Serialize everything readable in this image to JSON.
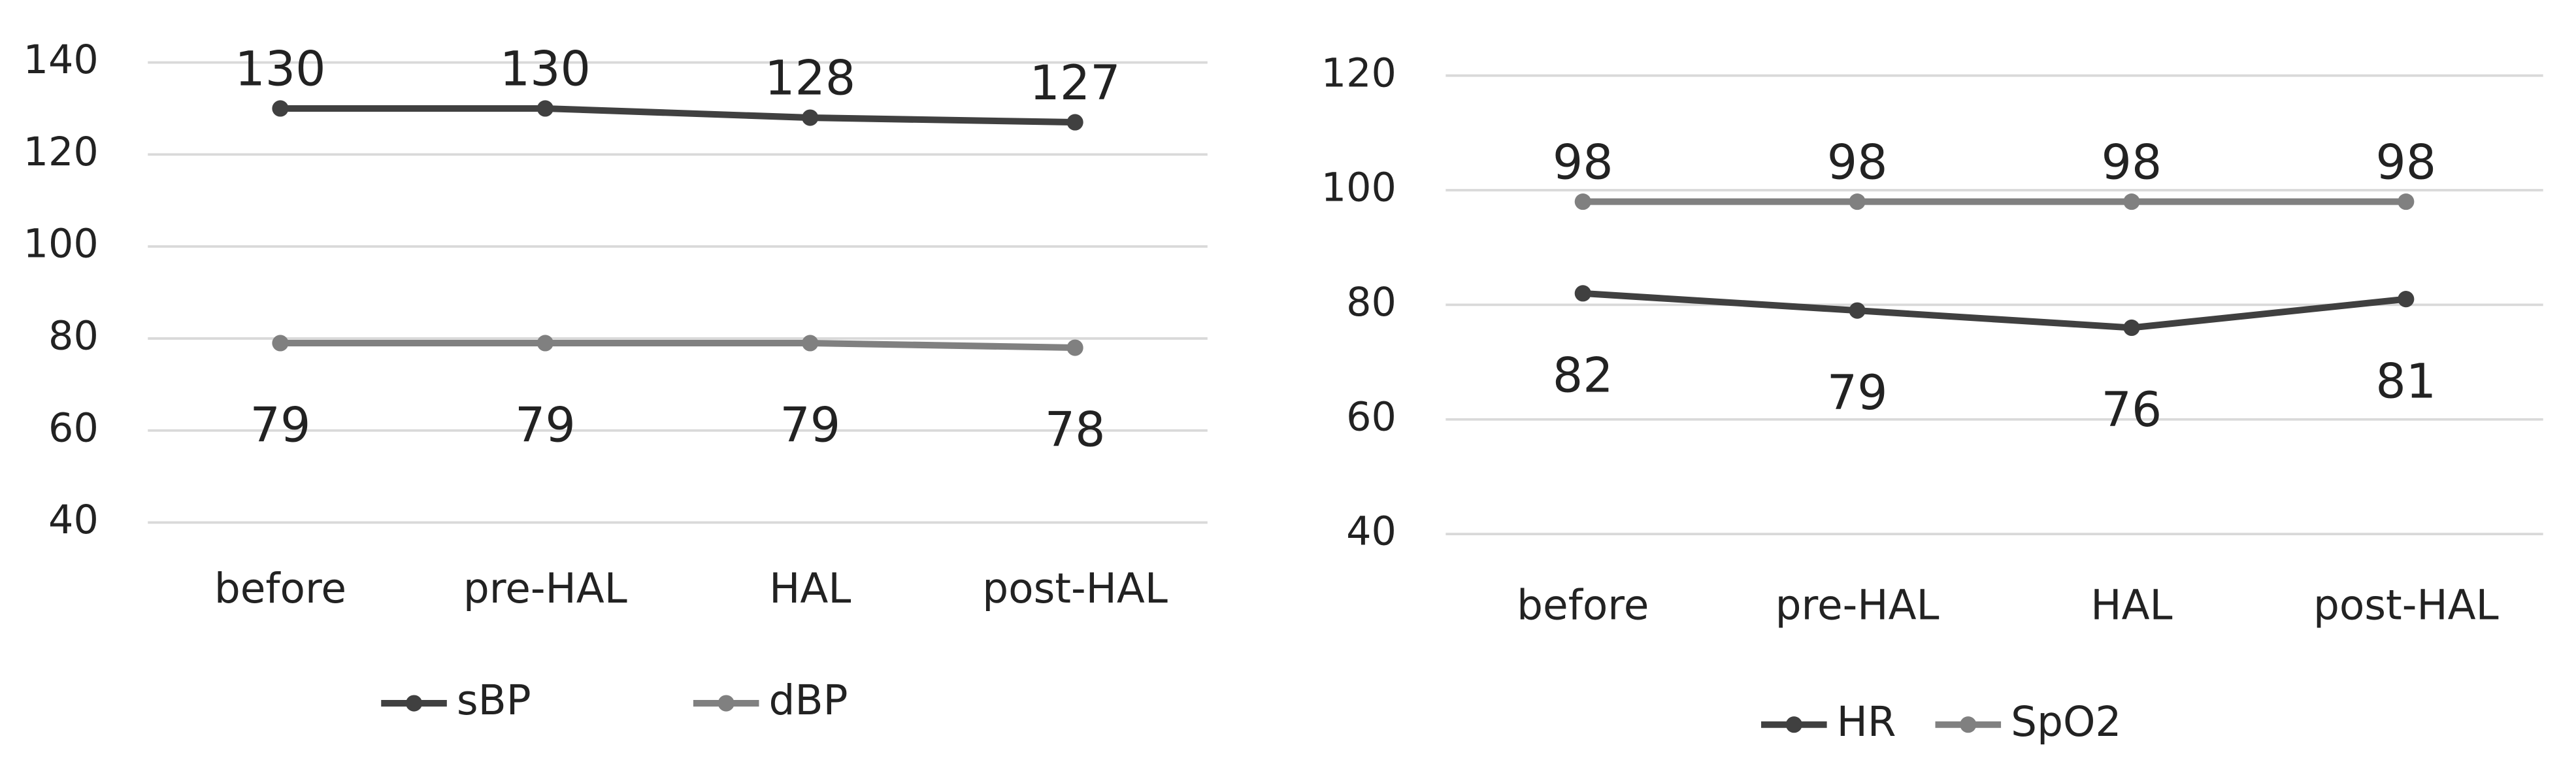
{
  "chart_data": [
    {
      "type": "line",
      "categories": [
        "before",
        "pre-HAL",
        "HAL",
        "post-HAL"
      ],
      "series": [
        {
          "name": "sBP",
          "color": "#404040",
          "values": [
            130,
            130,
            128,
            127
          ]
        },
        {
          "name": "dBP",
          "color": "#808080",
          "values": [
            79,
            79,
            79,
            78
          ]
        }
      ],
      "ylim": [
        40,
        140
      ],
      "yticks": [
        40,
        60,
        80,
        100,
        120,
        140
      ],
      "grid": true,
      "legend": "bottom"
    },
    {
      "type": "line",
      "categories": [
        "before",
        "pre-HAL",
        "HAL",
        "post-HAL"
      ],
      "series": [
        {
          "name": "HR",
          "color": "#404040",
          "values": [
            82,
            79,
            76,
            81
          ]
        },
        {
          "name": "SpO2",
          "color": "#808080",
          "values": [
            98,
            98,
            98,
            98
          ]
        }
      ],
      "ylim": [
        40,
        120
      ],
      "yticks": [
        40,
        60,
        80,
        100,
        120
      ],
      "grid": true,
      "legend": "bottom"
    }
  ]
}
